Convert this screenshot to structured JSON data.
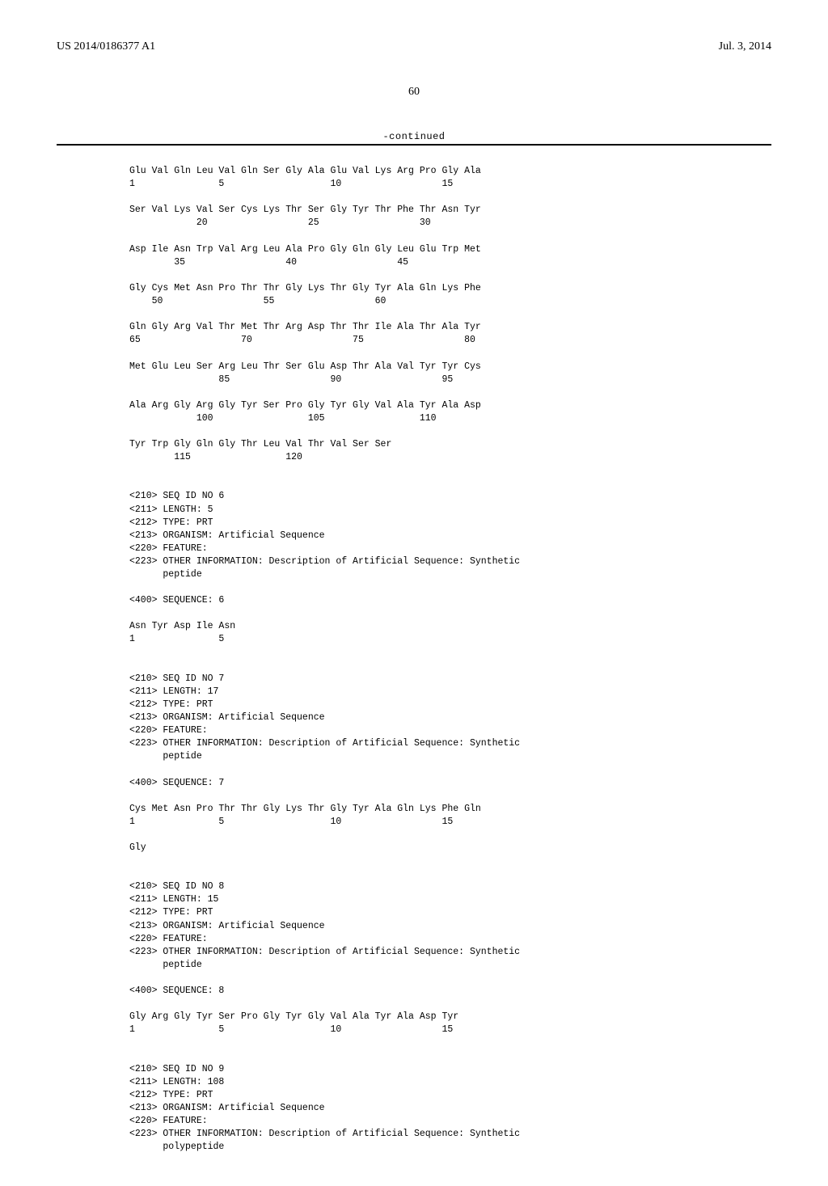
{
  "header": {
    "left": "US 2014/0186377 A1",
    "right": "Jul. 3, 2014"
  },
  "page_number": "60",
  "continued_label": "-continued",
  "seq5": {
    "rows": [
      {
        "aa": "Glu Val Gln Leu Val Gln Ser Gly Ala Glu Val Lys Arg Pro Gly Ala",
        "nums": "1               5                   10                  15"
      },
      {
        "aa": "Ser Val Lys Val Ser Cys Lys Thr Ser Gly Tyr Thr Phe Thr Asn Tyr",
        "nums": "            20                  25                  30"
      },
      {
        "aa": "Asp Ile Asn Trp Val Arg Leu Ala Pro Gly Gln Gly Leu Glu Trp Met",
        "nums": "        35                  40                  45"
      },
      {
        "aa": "Gly Cys Met Asn Pro Thr Thr Gly Lys Thr Gly Tyr Ala Gln Lys Phe",
        "nums": "    50                  55                  60"
      },
      {
        "aa": "Gln Gly Arg Val Thr Met Thr Arg Asp Thr Thr Ile Ala Thr Ala Tyr",
        "nums": "65                  70                  75                  80"
      },
      {
        "aa": "Met Glu Leu Ser Arg Leu Thr Ser Glu Asp Thr Ala Val Tyr Tyr Cys",
        "nums": "                85                  90                  95"
      },
      {
        "aa": "Ala Arg Gly Arg Gly Tyr Ser Pro Gly Tyr Gly Val Ala Tyr Ala Asp",
        "nums": "            100                 105                 110"
      },
      {
        "aa": "Tyr Trp Gly Gln Gly Thr Leu Val Thr Val Ser Ser",
        "nums": "        115                 120"
      }
    ]
  },
  "seq6": {
    "meta": [
      "<210> SEQ ID NO 6",
      "<211> LENGTH: 5",
      "<212> TYPE: PRT",
      "<213> ORGANISM: Artificial Sequence",
      "<220> FEATURE:",
      "<223> OTHER INFORMATION: Description of Artificial Sequence: Synthetic",
      "      peptide"
    ],
    "seqlabel": "<400> SEQUENCE: 6",
    "rows": [
      {
        "aa": "Asn Tyr Asp Ile Asn",
        "nums": "1               5"
      }
    ]
  },
  "seq7": {
    "meta": [
      "<210> SEQ ID NO 7",
      "<211> LENGTH: 17",
      "<212> TYPE: PRT",
      "<213> ORGANISM: Artificial Sequence",
      "<220> FEATURE:",
      "<223> OTHER INFORMATION: Description of Artificial Sequence: Synthetic",
      "      peptide"
    ],
    "seqlabel": "<400> SEQUENCE: 7",
    "rows": [
      {
        "aa": "Cys Met Asn Pro Thr Thr Gly Lys Thr Gly Tyr Ala Gln Lys Phe Gln",
        "nums": "1               5                   10                  15"
      },
      {
        "aa": "Gly",
        "nums": ""
      }
    ]
  },
  "seq8": {
    "meta": [
      "<210> SEQ ID NO 8",
      "<211> LENGTH: 15",
      "<212> TYPE: PRT",
      "<213> ORGANISM: Artificial Sequence",
      "<220> FEATURE:",
      "<223> OTHER INFORMATION: Description of Artificial Sequence: Synthetic",
      "      peptide"
    ],
    "seqlabel": "<400> SEQUENCE: 8",
    "rows": [
      {
        "aa": "Gly Arg Gly Tyr Ser Pro Gly Tyr Gly Val Ala Tyr Ala Asp Tyr",
        "nums": "1               5                   10                  15"
      }
    ]
  },
  "seq9": {
    "meta": [
      "<210> SEQ ID NO 9",
      "<211> LENGTH: 108",
      "<212> TYPE: PRT",
      "<213> ORGANISM: Artificial Sequence",
      "<220> FEATURE:",
      "<223> OTHER INFORMATION: Description of Artificial Sequence: Synthetic",
      "      polypeptide"
    ]
  }
}
